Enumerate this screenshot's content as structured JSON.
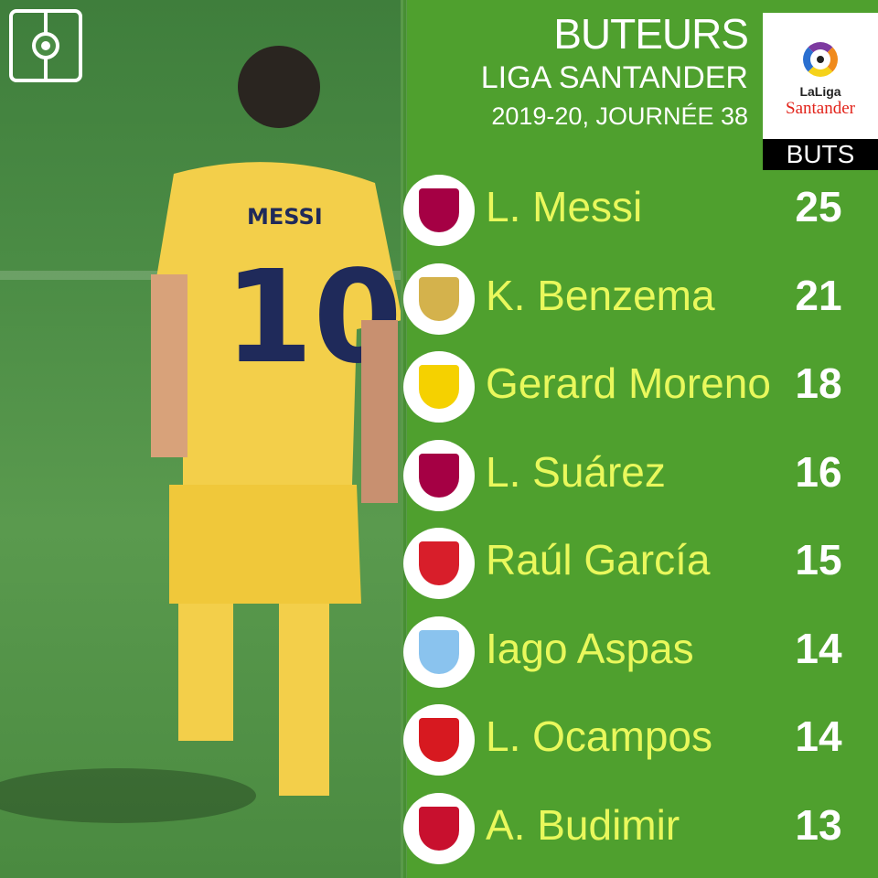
{
  "header": {
    "title": "BUTEURS",
    "league": "LIGA SANTANDER",
    "season": "2019-20, JOURNÉE 38",
    "column": "BUTS"
  },
  "logo": {
    "text1": "LaLiga",
    "text2": "Santander"
  },
  "scorers": [
    {
      "name": "L. Messi",
      "goals": "25",
      "club_icon": "fc-barcelona-crest",
      "color": "#a50044"
    },
    {
      "name": "K. Benzema",
      "goals": "21",
      "club_icon": "real-madrid-crest",
      "color": "#d4b24c"
    },
    {
      "name": "Gerard Moreno",
      "goals": "18",
      "club_icon": "villarreal-crest",
      "color": "#f5d100"
    },
    {
      "name": "L. Suárez",
      "goals": "16",
      "club_icon": "fc-barcelona-crest",
      "color": "#a50044"
    },
    {
      "name": "Raúl García",
      "goals": "15",
      "club_icon": "athletic-club-crest",
      "color": "#d81e2a"
    },
    {
      "name": "Iago Aspas",
      "goals": "14",
      "club_icon": "celta-vigo-crest",
      "color": "#8ac3ee"
    },
    {
      "name": "L. Ocampos",
      "goals": "14",
      "club_icon": "sevilla-crest",
      "color": "#d71920"
    },
    {
      "name": "A. Budimir",
      "goals": "13",
      "club_icon": "mallorca-crest",
      "color": "#c8102e"
    }
  ]
}
